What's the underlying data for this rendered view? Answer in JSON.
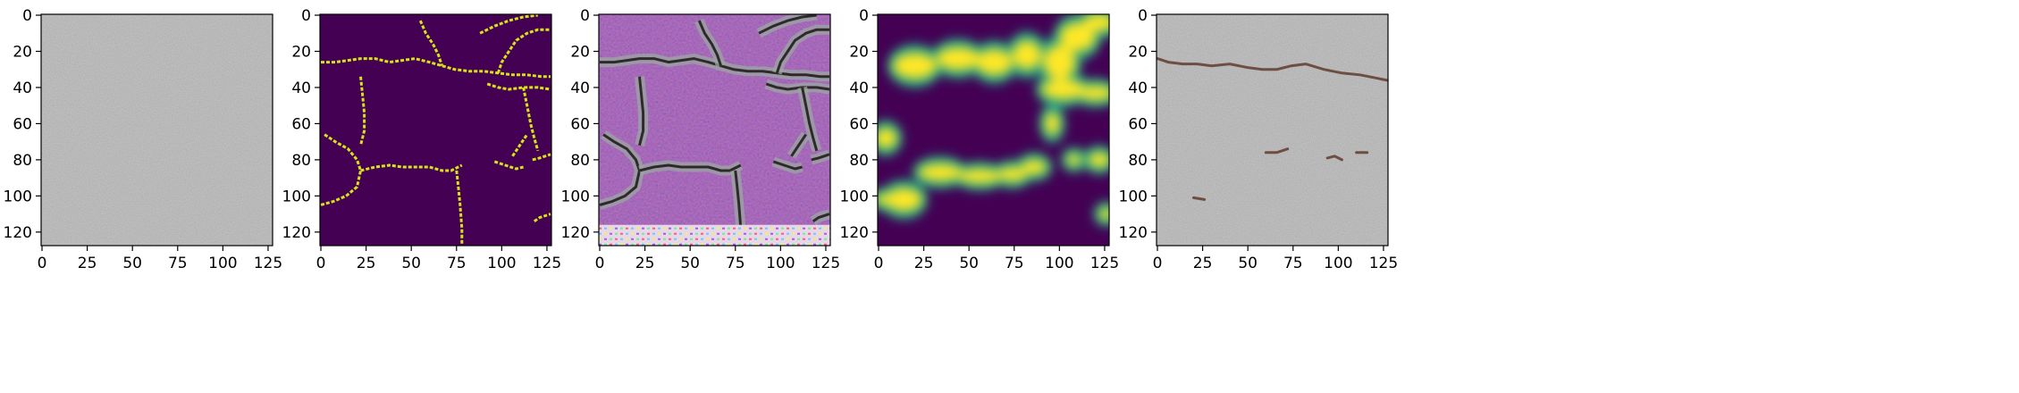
{
  "figure": {
    "panels": [
      {
        "name": "input-photo",
        "kind": "photo-plain",
        "base": "#8e8e8e"
      },
      {
        "name": "ground-truth-mask",
        "kind": "mask-binary",
        "bg": "#440154",
        "fg": "#d8e219"
      },
      {
        "name": "generated-texture",
        "kind": "photo-purple",
        "base": "#9a57b8"
      },
      {
        "name": "predicted-heatmap",
        "kind": "mask-blur",
        "bg": "#440154",
        "fg": "#fde725",
        "mid": "#21a185"
      },
      {
        "name": "overlay-photo",
        "kind": "photo-overlay",
        "base": "#8e8e8e",
        "crack": "#5a3324"
      }
    ],
    "axis": {
      "x_ticks": [
        "0",
        "25",
        "50",
        "75",
        "100",
        "125"
      ],
      "y_ticks": [
        "0",
        "20",
        "40",
        "60",
        "80",
        "100",
        "120"
      ],
      "xlim": [
        -0.5,
        127.5
      ],
      "ylim": [
        127.5,
        -0.5
      ]
    },
    "cracks": [
      [
        [
          0,
          26
        ],
        [
          8,
          26
        ],
        [
          15,
          25
        ],
        [
          22,
          24
        ],
        [
          30,
          24
        ],
        [
          38,
          26
        ],
        [
          45,
          25
        ],
        [
          52,
          24
        ],
        [
          60,
          26
        ],
        [
          67,
          28
        ],
        [
          74,
          30
        ],
        [
          82,
          31
        ],
        [
          90,
          31
        ],
        [
          98,
          32
        ],
        [
          106,
          33
        ],
        [
          114,
          33
        ],
        [
          122,
          34
        ],
        [
          127,
          34
        ]
      ],
      [
        [
          55,
          3
        ],
        [
          58,
          10
        ],
        [
          62,
          16
        ],
        [
          65,
          22
        ],
        [
          67,
          28
        ]
      ],
      [
        [
          92,
          38
        ],
        [
          98,
          40
        ],
        [
          104,
          41
        ],
        [
          112,
          40
        ],
        [
          120,
          40
        ],
        [
          127,
          41
        ]
      ],
      [
        [
          88,
          10
        ],
        [
          96,
          6
        ],
        [
          104,
          3
        ],
        [
          112,
          1
        ],
        [
          120,
          0
        ]
      ],
      [
        [
          98,
          32
        ],
        [
          100,
          26
        ],
        [
          104,
          20
        ],
        [
          108,
          14
        ],
        [
          114,
          10
        ],
        [
          120,
          8
        ],
        [
          127,
          8
        ]
      ],
      [
        [
          2,
          66
        ],
        [
          8,
          70
        ],
        [
          15,
          74
        ],
        [
          20,
          80
        ],
        [
          22,
          86
        ],
        [
          20,
          95
        ],
        [
          14,
          100
        ],
        [
          7,
          103
        ],
        [
          0,
          105
        ]
      ],
      [
        [
          22,
          86
        ],
        [
          30,
          84
        ],
        [
          38,
          83
        ],
        [
          45,
          84
        ],
        [
          52,
          84
        ],
        [
          60,
          84
        ],
        [
          67,
          86
        ],
        [
          72,
          86
        ],
        [
          78,
          83
        ]
      ],
      [
        [
          96,
          81
        ],
        [
          102,
          83
        ],
        [
          108,
          85
        ],
        [
          112,
          84
        ]
      ],
      [
        [
          117,
          80
        ],
        [
          121,
          79
        ],
        [
          127,
          77
        ]
      ],
      [
        [
          106,
          78
        ],
        [
          110,
          72
        ],
        [
          114,
          66
        ]
      ],
      [
        [
          118,
          114
        ],
        [
          121,
          112
        ],
        [
          127,
          110
        ]
      ],
      [
        [
          75,
          86
        ],
        [
          76,
          95
        ],
        [
          77,
          105
        ],
        [
          78,
          118
        ],
        [
          78,
          127
        ]
      ],
      [
        [
          22,
          34
        ],
        [
          23,
          44
        ],
        [
          24,
          54
        ],
        [
          24,
          64
        ],
        [
          22,
          72
        ]
      ],
      [
        [
          112,
          40
        ],
        [
          114,
          50
        ],
        [
          116,
          60
        ],
        [
          118,
          68
        ],
        [
          120,
          75
        ]
      ]
    ],
    "heat_blobs": [
      [
        20,
        28,
        12,
        9
      ],
      [
        44,
        24,
        12,
        8
      ],
      [
        64,
        26,
        10,
        9
      ],
      [
        82,
        22,
        8,
        10
      ],
      [
        100,
        26,
        9,
        12
      ],
      [
        110,
        12,
        10,
        10
      ],
      [
        122,
        4,
        9,
        6
      ],
      [
        102,
        41,
        12,
        7
      ],
      [
        120,
        43,
        10,
        5
      ],
      [
        96,
        60,
        4,
        8
      ],
      [
        86,
        84,
        7,
        5
      ],
      [
        108,
        80,
        4,
        4
      ],
      [
        122,
        80,
        6,
        5
      ],
      [
        34,
        87,
        12,
        6
      ],
      [
        56,
        89,
        12,
        5
      ],
      [
        74,
        88,
        8,
        5
      ],
      [
        14,
        102,
        10,
        8
      ],
      [
        6,
        102,
        8,
        4
      ],
      [
        4,
        68,
        6,
        7
      ],
      [
        126,
        110,
        4,
        4
      ]
    ],
    "overlay_marks": [
      [
        [
          0,
          24
        ],
        [
          6,
          26
        ],
        [
          14,
          27
        ],
        [
          22,
          27
        ],
        [
          30,
          28
        ],
        [
          40,
          27
        ],
        [
          50,
          29
        ],
        [
          58,
          30
        ],
        [
          66,
          30
        ],
        [
          74,
          28
        ],
        [
          82,
          27
        ],
        [
          92,
          30
        ],
        [
          102,
          32
        ],
        [
          112,
          33
        ],
        [
          122,
          35
        ],
        [
          127,
          36
        ]
      ],
      [
        [
          60,
          76
        ],
        [
          66,
          76
        ],
        [
          72,
          74
        ]
      ],
      [
        [
          94,
          79
        ],
        [
          98,
          78
        ],
        [
          102,
          80
        ]
      ],
      [
        [
          20,
          101
        ],
        [
          26,
          102
        ]
      ],
      [
        [
          110,
          76
        ],
        [
          116,
          76
        ]
      ]
    ]
  }
}
